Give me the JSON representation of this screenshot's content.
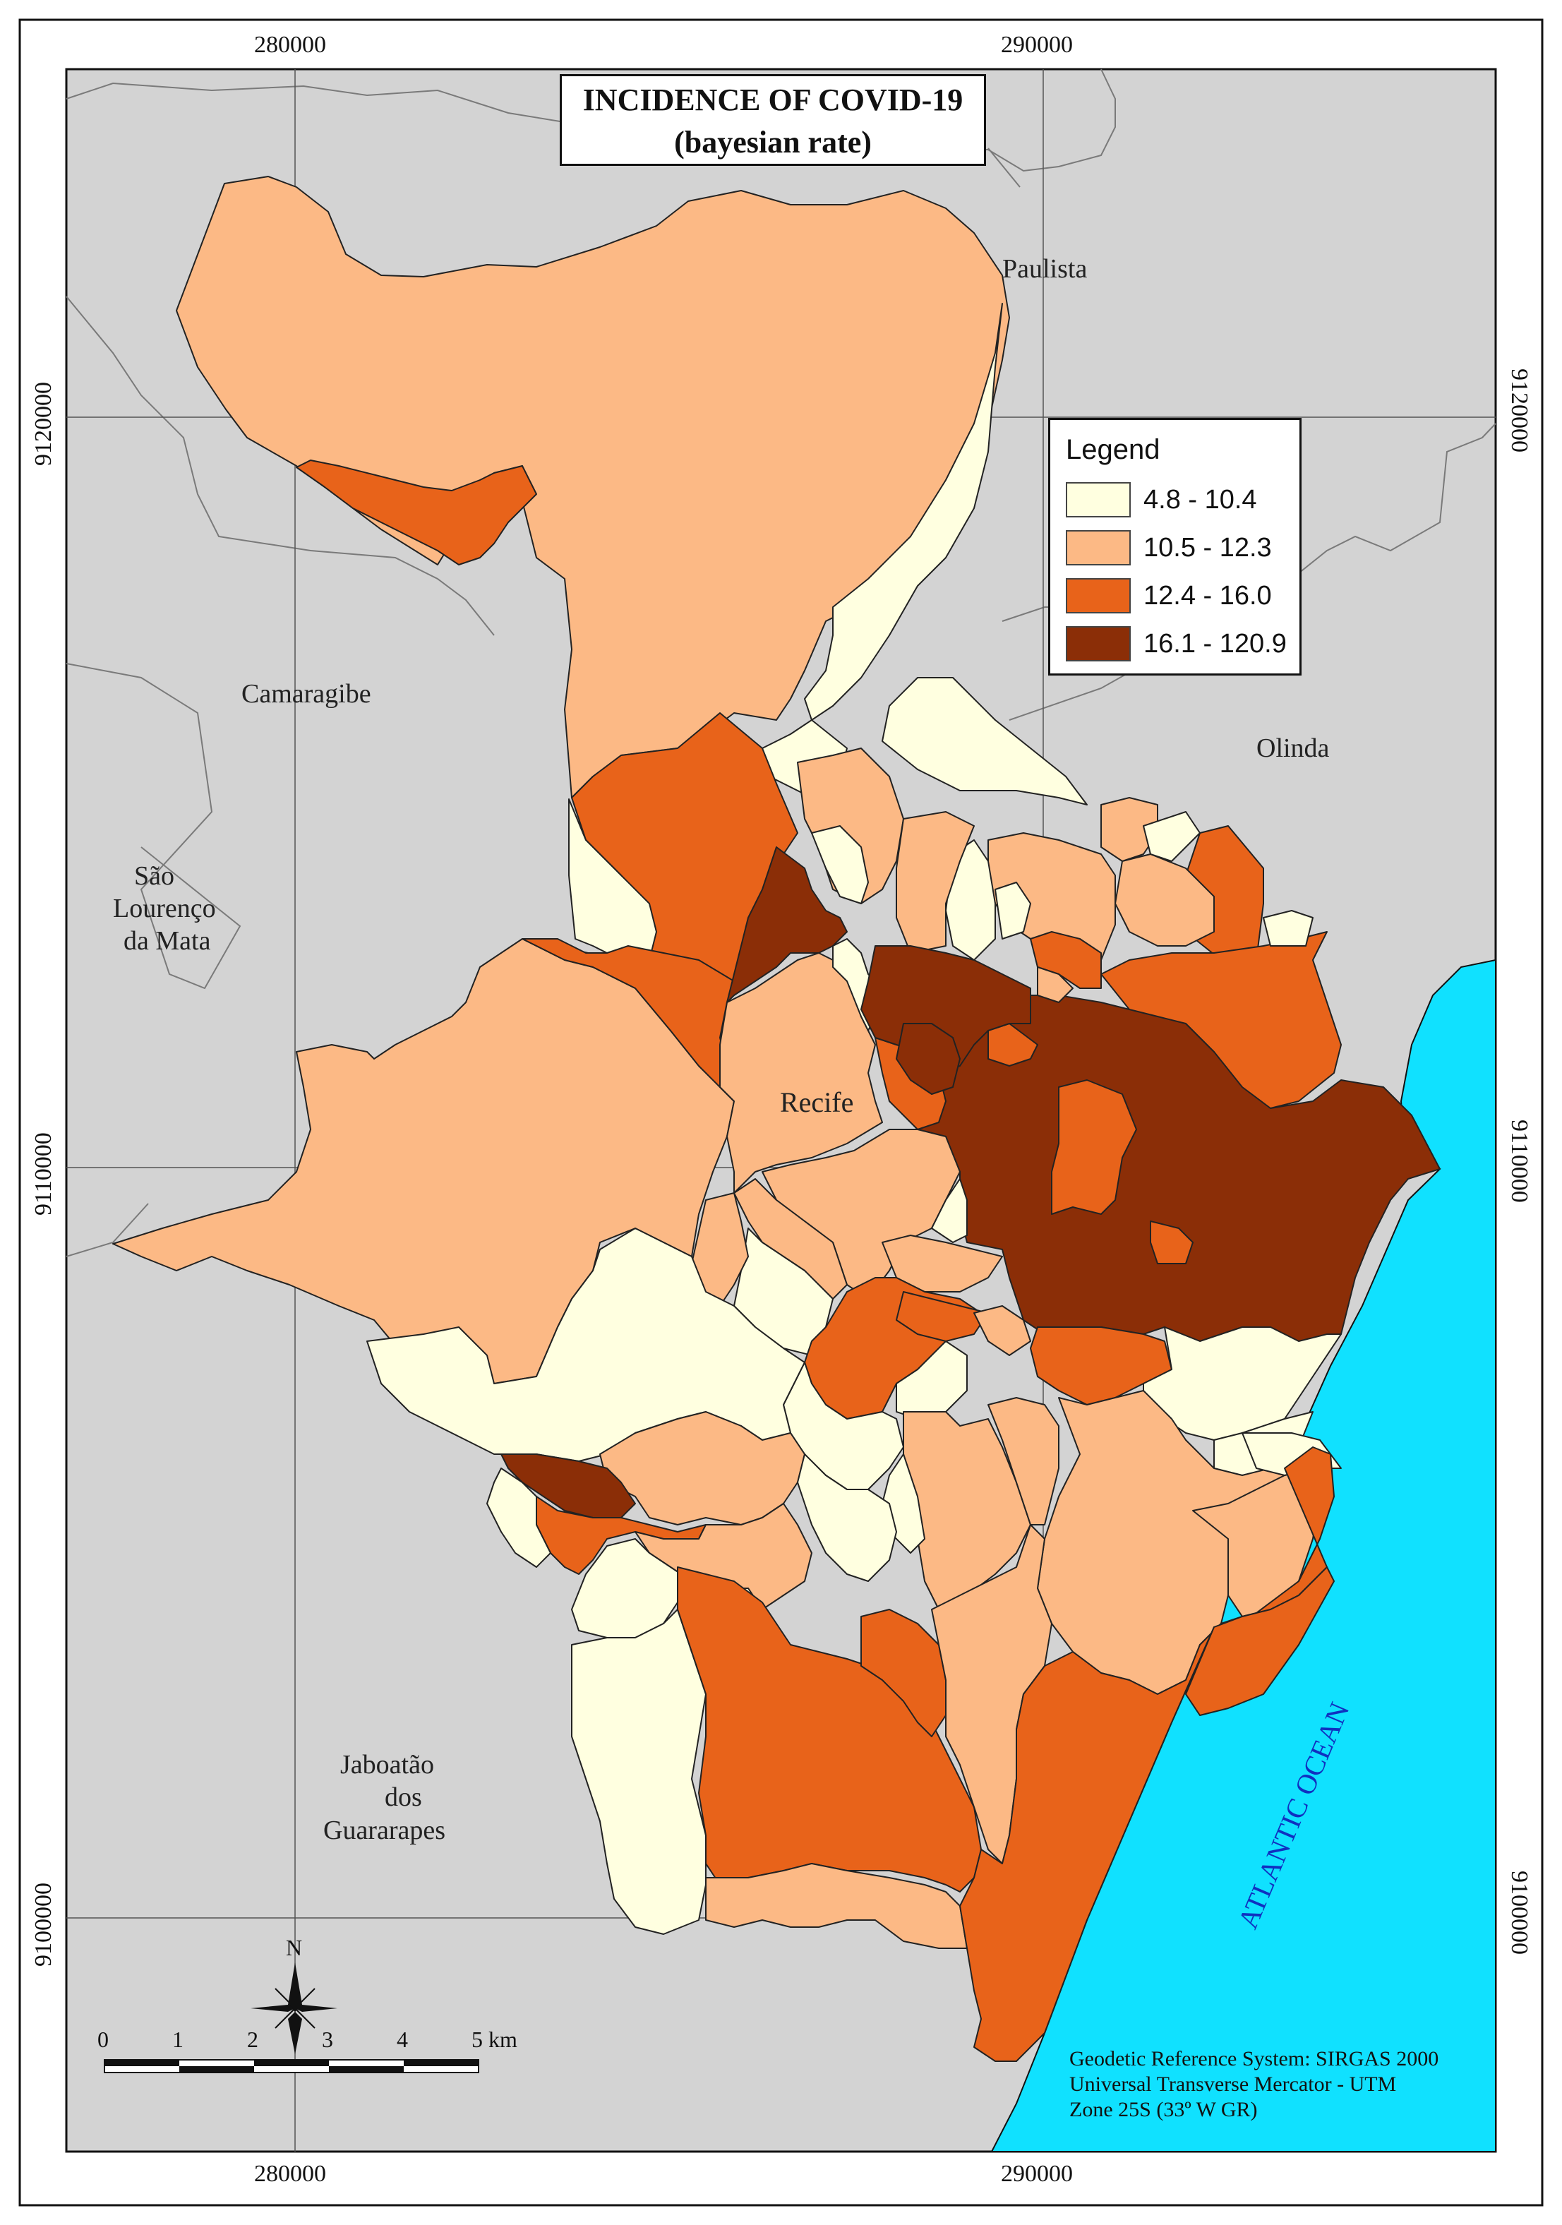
{
  "title": {
    "line1": "INCIDENCE OF COVID-19",
    "line2": "(bayesian rate)"
  },
  "legend": {
    "title": "Legend",
    "items": [
      {
        "label": "4.8 - 10.4",
        "color": "#FFFFE0"
      },
      {
        "label": "10.5 - 12.3",
        "color": "#FCB985"
      },
      {
        "label": "12.4 - 16.0",
        "color": "#E8631A"
      },
      {
        "label": "16.1 - 120.9",
        "color": "#8B2E07"
      }
    ]
  },
  "coordinates": {
    "easting_top": [
      "280000",
      "290000"
    ],
    "easting_bottom": [
      "280000",
      "290000"
    ],
    "northing_left": [
      "9120000",
      "9110000",
      "9100000"
    ],
    "northing_right": [
      "9120000",
      "9110000",
      "9100000"
    ]
  },
  "places": {
    "paulista": "Paulista",
    "camaragibe": "Camaragibe",
    "olinda": "Olinda",
    "sao_lourenco_1": "São",
    "sao_lourenco_2": "Lourenço",
    "sao_lourenco_3": "da Mata",
    "recife": "Recife",
    "jaboatao_1": "Jaboatão",
    "jaboatao_2": "dos",
    "jaboatao_3": "Guararapes",
    "ocean": "ATLANTIC OCEAN"
  },
  "north_arrow": {
    "label": "N"
  },
  "scale_bar": {
    "ticks": [
      "0",
      "1",
      "2",
      "3",
      "4",
      "5 km"
    ]
  },
  "reference": {
    "line1": "Geodetic Reference System: SIRGAS 2000",
    "line2": "Universal Transverse Mercator - UTM",
    "line3": "Zone 25S (33º W GR)"
  },
  "colors": {
    "background_land": "#D3D3D3",
    "ocean": "#10E1FF",
    "class1": "#FFFFE0",
    "class2": "#FCB985",
    "class3": "#E8631A",
    "class4": "#8B2E07"
  }
}
